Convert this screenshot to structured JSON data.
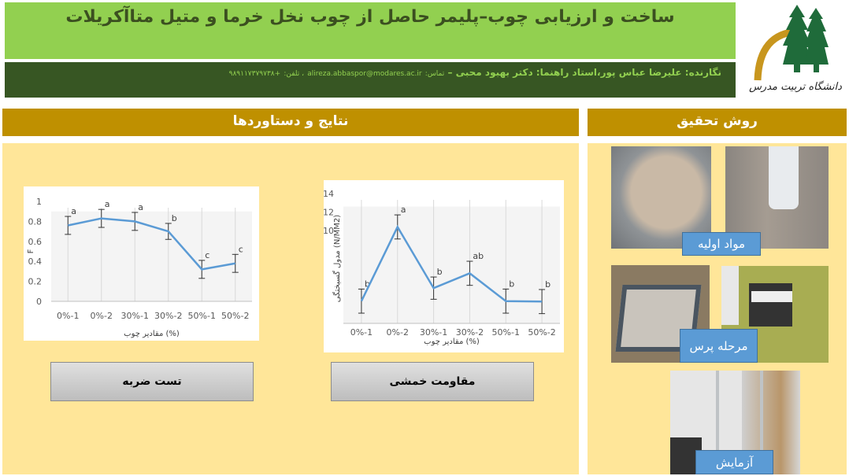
{
  "header": {
    "title": "ساخت و ارزیابی چوب–پلیمر حاصل از چوب نخل خرما و متیل متاآکریلات",
    "authors": "نگارنده: علیرضا عباس پور،استاد راهنما: دکتر بهبود محبی –",
    "contact_label": "تماس:",
    "email": "alireza.abbaspor@modares.ac.ir",
    "phone_label": "، تلفن:",
    "phone": "+۹۸۹۱۱۷۳۷۹۷۳۸",
    "logo_text": "دانشگاه تربیت مدرس"
  },
  "sections": {
    "results": "نتایج و دستاوردها",
    "method": "روش تحقیق"
  },
  "buttons": {
    "impact": "تست ضربه",
    "bending": "مقاومت خمشی"
  },
  "method_labels": {
    "materials": "مواد اولیه",
    "press": "مرحله پرس",
    "test": "آزمایش"
  },
  "colors": {
    "title_bg": "#92d050",
    "author_bg": "#375623",
    "section_bg": "#bf9000",
    "panel_bg": "#ffe699",
    "line": "#5b9bd5",
    "label_bg": "#5b9bd5"
  },
  "chart_data": [
    {
      "type": "line",
      "ylabel": "F",
      "xlabel": "مقادیر چوب (%)",
      "ylim": [
        0,
        1
      ],
      "yticks": [
        "0",
        "0.2",
        "0.4",
        "0.6",
        "0.8",
        "1"
      ],
      "categories": [
        "0%-1",
        "0%-2",
        "30%-1",
        "30%-2",
        "50%-1",
        "50%-2"
      ],
      "values": [
        0.76,
        0.83,
        0.8,
        0.7,
        0.32,
        0.38
      ],
      "errors": [
        0.09,
        0.09,
        0.09,
        0.08,
        0.09,
        0.09
      ],
      "annotations": [
        "a",
        "a",
        "a",
        "b",
        "c",
        "c"
      ],
      "grid": "vertical"
    },
    {
      "type": "line",
      "ylabel": "مدول گسیختگی (N/MM2)",
      "xlabel": "مقادیر چوب (%)",
      "ylim": [
        0,
        14
      ],
      "yticks": [
        "10",
        "12",
        "14"
      ],
      "categories": [
        "0%-1",
        "0%-2",
        "30%-1",
        "30%-2",
        "50%-1",
        "50%-2"
      ],
      "values": [
        2.4,
        10.4,
        3.8,
        5.4,
        2.4,
        2.35
      ],
      "errors": [
        1.3,
        1.3,
        1.2,
        1.3,
        1.3,
        1.3
      ],
      "annotations": [
        "b",
        "a",
        "b",
        "ab",
        "b",
        "b"
      ],
      "grid": "vertical"
    }
  ]
}
